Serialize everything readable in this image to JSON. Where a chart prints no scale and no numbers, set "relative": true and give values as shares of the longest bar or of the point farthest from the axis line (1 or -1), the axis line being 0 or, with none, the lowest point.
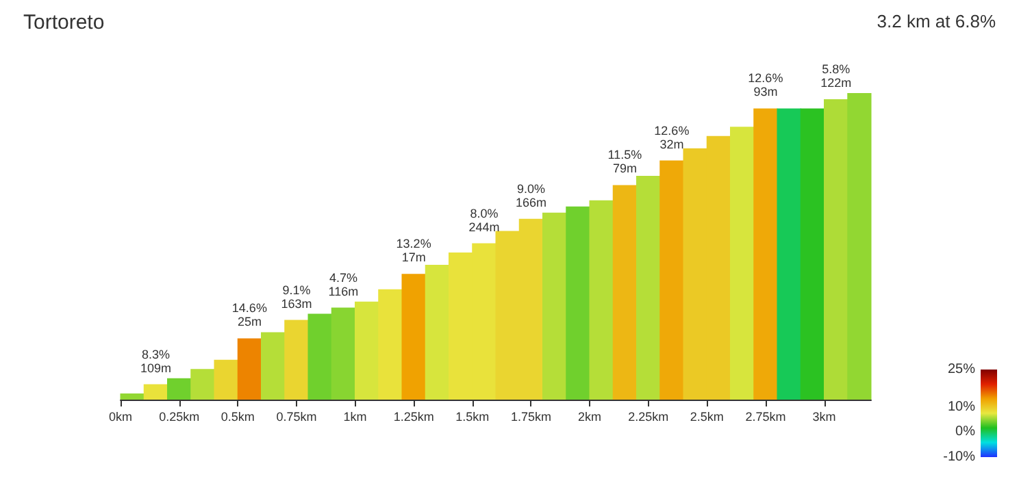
{
  "chart_data": {
    "type": "bar",
    "title": "Tortoreto",
    "subtitle": "3.2 km at 6.8%",
    "relative": true,
    "x": [
      0.05,
      0.15,
      0.25,
      0.35,
      0.45,
      0.55,
      0.65,
      0.75,
      0.85,
      0.95,
      1.05,
      1.15,
      1.25,
      1.35,
      1.45,
      1.55,
      1.65,
      1.75,
      1.85,
      1.95,
      2.05,
      2.15,
      2.25,
      2.35,
      2.45,
      2.55,
      2.65,
      2.75,
      2.85,
      2.95,
      3.05,
      3.15
    ],
    "values": [
      0.02,
      0.05,
      0.07,
      0.1,
      0.13,
      0.2,
      0.22,
      0.26,
      0.28,
      0.3,
      0.32,
      0.36,
      0.41,
      0.44,
      0.48,
      0.51,
      0.55,
      0.59,
      0.61,
      0.63,
      0.65,
      0.7,
      0.73,
      0.78,
      0.82,
      0.86,
      0.89,
      0.95,
      0.95,
      0.95,
      0.98,
      1.0
    ],
    "cvalues": [
      5,
      8,
      4,
      6,
      9,
      14.6,
      6,
      9,
      4,
      4.7,
      7,
      8,
      13.2,
      7,
      8,
      8,
      9,
      9,
      6,
      4,
      6,
      11.5,
      6,
      12.6,
      10,
      10,
      7,
      12.6,
      0,
      2,
      5.8,
      5
    ],
    "clim": [
      -10,
      25
    ],
    "cticks": [
      {
        "value": 25,
        "label": "25%"
      },
      {
        "value": 10,
        "label": "10%"
      },
      {
        "value": 0,
        "label": "0%"
      },
      {
        "value": -10,
        "label": "-10%"
      }
    ],
    "xlim": [
      0,
      3.2
    ],
    "xticks": [
      {
        "value": 0,
        "label": "0km"
      },
      {
        "value": 0.25,
        "label": "0.25km"
      },
      {
        "value": 0.5,
        "label": "0.5km"
      },
      {
        "value": 0.75,
        "label": "0.75km"
      },
      {
        "value": 1,
        "label": "1km"
      },
      {
        "value": 1.25,
        "label": "1.25km"
      },
      {
        "value": 1.5,
        "label": "1.5km"
      },
      {
        "value": 1.75,
        "label": "1.75km"
      },
      {
        "value": 2,
        "label": "2km"
      },
      {
        "value": 2.25,
        "label": "2.25km"
      },
      {
        "value": 2.5,
        "label": "2.5km"
      },
      {
        "value": 2.75,
        "label": "2.75km"
      },
      {
        "value": 3,
        "label": "3km"
      }
    ],
    "annotations": [
      {
        "text": "8.3%\n109m",
        "x": 0.15,
        "y": 0.05
      },
      {
        "text": "14.6%\n25m",
        "x": 0.55,
        "y": 0.2
      },
      {
        "text": "9.1%\n163m",
        "x": 0.75,
        "y": 0.26
      },
      {
        "text": "4.7%\n116m",
        "x": 0.95,
        "y": 0.3
      },
      {
        "text": "13.2%\n17m",
        "x": 1.25,
        "y": 0.41
      },
      {
        "text": "8.0%\n244m",
        "x": 1.55,
        "y": 0.51
      },
      {
        "text": "9.0%\n166m",
        "x": 1.75,
        "y": 0.59
      },
      {
        "text": "11.5%\n79m",
        "x": 2.15,
        "y": 0.7
      },
      {
        "text": "12.6%\n32m",
        "x": 2.35,
        "y": 0.78
      },
      {
        "text": "12.6%\n93m",
        "x": 2.75,
        "y": 0.95
      },
      {
        "text": "5.8%\n122m",
        "x": 3.05,
        "y": 0.98
      }
    ],
    "grid": false
  }
}
